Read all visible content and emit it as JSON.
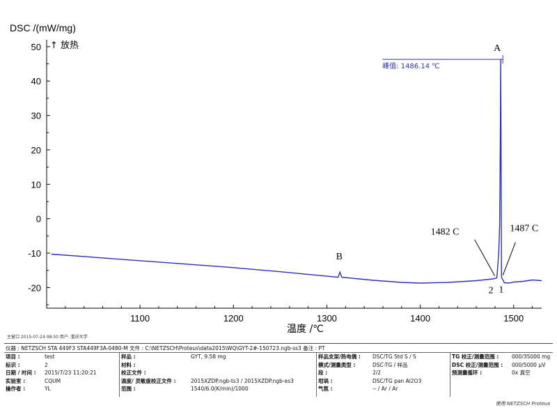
{
  "chart_data": {
    "type": "line",
    "ylabel": "DSC /(mW/mg)",
    "exo_label": "↑ 放热",
    "xlabel": "温度 /℃",
    "xlim": [
      1000,
      1530
    ],
    "ylim": [
      -26,
      52
    ],
    "x_ticks": [
      1100,
      1200,
      1300,
      1400,
      1500
    ],
    "y_ticks": [
      50,
      40,
      30,
      20,
      10,
      0,
      -10,
      -20
    ],
    "series": [
      {
        "color": "#2b2fb8",
        "points": [
          [
            1005,
            -10.3
          ],
          [
            1050,
            -11.2
          ],
          [
            1100,
            -12.2
          ],
          [
            1150,
            -13.2
          ],
          [
            1200,
            -14.2
          ],
          [
            1250,
            -15.4
          ],
          [
            1300,
            -16.7
          ],
          [
            1312,
            -17.0
          ],
          [
            1314,
            -15.5
          ],
          [
            1316,
            -17.0
          ],
          [
            1350,
            -17.9
          ],
          [
            1380,
            -18.5
          ],
          [
            1400,
            -18.7
          ],
          [
            1430,
            -18.5
          ],
          [
            1460,
            -18.0
          ],
          [
            1478,
            -17.5
          ],
          [
            1482,
            -17.2
          ],
          [
            1484,
            -10
          ],
          [
            1485,
            -2
          ],
          [
            1485.5,
            15
          ],
          [
            1485.8,
            28
          ],
          [
            1486.14,
            46.3
          ],
          [
            1486.4,
            30
          ],
          [
            1486.7,
            5
          ],
          [
            1487,
            -17.0
          ],
          [
            1490,
            -18.6
          ],
          [
            1495,
            -18.7
          ],
          [
            1500,
            -18.4
          ],
          [
            1510,
            -18.2
          ],
          [
            1520,
            -17.8
          ],
          [
            1530,
            -18.0
          ]
        ]
      }
    ],
    "annotations": {
      "peak_value_label": "峰值: 1486.14 ℃",
      "label_A": "A",
      "label_B": "B",
      "onset_label": "1482 C",
      "end_label": "1487 C",
      "marker_2": "2",
      "marker_1": "1"
    },
    "grid": false
  },
  "stamp": "主窗口    2015-07-24 08:50    用户: 重庆大学",
  "info_panel": {
    "header": "仪器 :  NETZSCH STA 449F3 STA449F3A-0480-M   文件 :  C:\\NETZSCH\\Proteus\\data2015\\WQ\\GYT-2#-150723.ngb-ss3   备注 :  PT",
    "col1": [
      {
        "k": "项目 :",
        "v": "test"
      },
      {
        "k": "标识 :",
        "v": "2"
      },
      {
        "k": "日期 / 时间 :",
        "v": "2015/7/23 11:20:21"
      },
      {
        "k": "实验室 :",
        "v": "CQUM"
      },
      {
        "k": "操作者 :",
        "v": "YL"
      }
    ],
    "col2": [
      {
        "k": "样品 :",
        "v": "GYT, 9.58 mg"
      },
      {
        "k": "材料 :",
        "v": ""
      },
      {
        "k": "校正文件 :",
        "v": ""
      },
      {
        "k": "温度/ 灵敏度校正文件 :",
        "v": "2015XZDP.ngb-ts3 / 2015XZDP.ngb-es3"
      },
      {
        "k": "范围 :",
        "v": "1540/6.0(K/min)/1000"
      }
    ],
    "col3": [
      {
        "k": "样品支架/热电偶 :",
        "v": "DSC/TG Std S / S"
      },
      {
        "k": "模式/测量类型 :",
        "v": "DSC-TG / 样品"
      },
      {
        "k": "段 :",
        "v": "2/2"
      },
      {
        "k": "坩埚 :",
        "v": "DSC/TG pan Al2O3"
      },
      {
        "k": "气氛 :",
        "v": "-- / Ar / Ar"
      }
    ],
    "col4": [
      {
        "k": "TG 校正/测量范围 :",
        "v": "000/35000 mg"
      },
      {
        "k": "DSC 校正/测量范围 :",
        "v": "000/5000 µV"
      },
      {
        "k": "预测量循环 :",
        "v": "0x 真空"
      }
    ]
  },
  "footer": "使用 NETZSCH Proteus"
}
